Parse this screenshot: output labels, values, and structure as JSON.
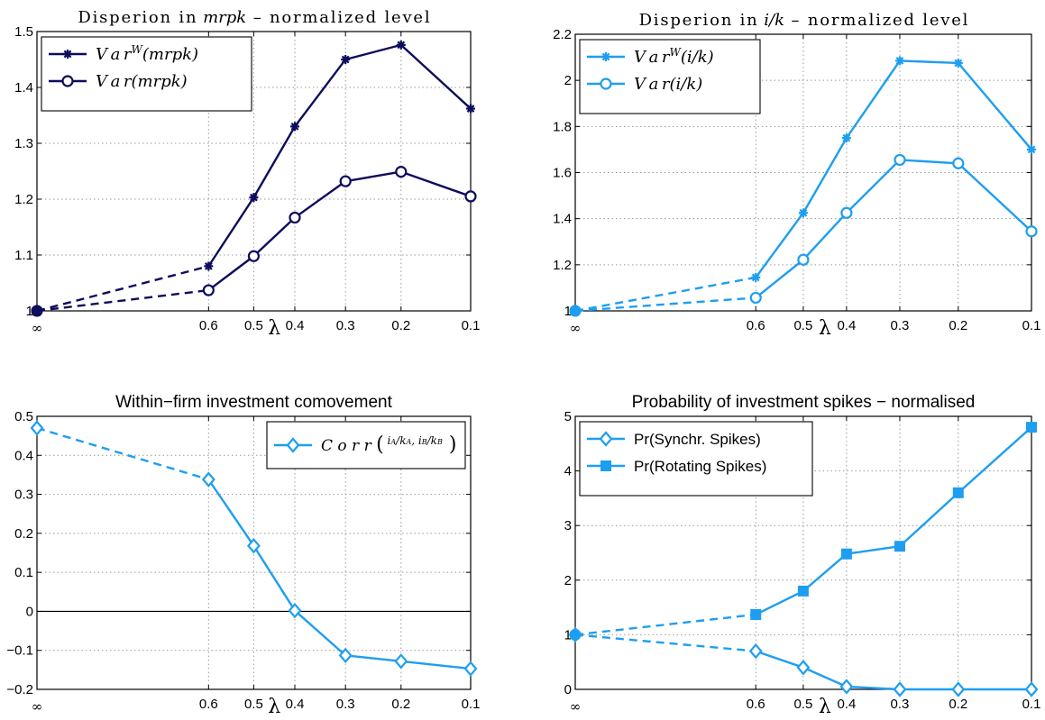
{
  "chart_data": [
    {
      "type": "line",
      "title_text": "Disperion in ",
      "title_math": "mrpk",
      "title_suffix": " – normalized level",
      "xlabel": "λ",
      "categories": [
        "∞",
        "0.6",
        "0.5",
        "0.4",
        "0.3",
        "0.2",
        "0.1"
      ],
      "x": [
        1.0,
        0.6,
        0.5,
        0.4,
        0.3,
        0.2,
        0.1
      ],
      "ylim": [
        1,
        1.5
      ],
      "yticks": [
        1,
        1.1,
        1.2,
        1.3,
        1.4,
        1.5
      ],
      "ytick_labels": [
        "1",
        "1.1",
        "1.2",
        "1.3",
        "1.4",
        "1.5"
      ],
      "grid": true,
      "legend_position": "top-left",
      "color": "#0d0d5c",
      "series": [
        {
          "name": "Var^W(mrpk)",
          "name_base": "Var",
          "name_sup": "W",
          "name_arg": "(mrpk)",
          "marker": "star",
          "values": [
            1.0,
            1.08,
            1.203,
            1.33,
            1.45,
            1.476,
            1.362
          ]
        },
        {
          "name": "Var(mrpk)",
          "name_base": "Var",
          "name_sup": "",
          "name_arg": "(mrpk)",
          "marker": "circle",
          "values": [
            1.0,
            1.037,
            1.098,
            1.167,
            1.232,
            1.249,
            1.205
          ]
        }
      ]
    },
    {
      "type": "line",
      "title_text": "Disperion in ",
      "title_math": "i/k",
      "title_suffix": " – normalized level",
      "xlabel": "λ",
      "categories": [
        "∞",
        "0.6",
        "0.5",
        "0.4",
        "0.3",
        "0.2",
        "0.1"
      ],
      "x": [
        1.0,
        0.6,
        0.5,
        0.4,
        0.3,
        0.2,
        0.1
      ],
      "ylim": [
        1,
        2.2
      ],
      "yticks": [
        1,
        1.2,
        1.4,
        1.6,
        1.8,
        2,
        2.2
      ],
      "ytick_labels": [
        "1",
        "1.2",
        "1.4",
        "1.6",
        "1.8",
        "2",
        "2.2"
      ],
      "grid": true,
      "legend_position": "top-left",
      "color": "#1e9ef0",
      "series": [
        {
          "name": "Var^W(i/k)",
          "name_base": "Var",
          "name_sup": "W",
          "name_arg": "(i/k)",
          "marker": "star",
          "values": [
            1.0,
            1.145,
            1.425,
            1.75,
            2.085,
            2.075,
            1.7
          ]
        },
        {
          "name": "Var(i/k)",
          "name_base": "Var",
          "name_sup": "",
          "name_arg": "(i/k)",
          "marker": "circle",
          "values": [
            1.0,
            1.057,
            1.222,
            1.425,
            1.655,
            1.64,
            1.345
          ]
        }
      ]
    },
    {
      "type": "line",
      "title": "Within−firm investment comovement",
      "xlabel": "λ",
      "categories": [
        "∞",
        "0.6",
        "0.5",
        "0.4",
        "0.3",
        "0.2",
        "0.1"
      ],
      "x": [
        1.0,
        0.6,
        0.5,
        0.4,
        0.3,
        0.2,
        0.1
      ],
      "ylim": [
        -0.2,
        0.5
      ],
      "yticks": [
        -0.2,
        -0.1,
        0,
        0.1,
        0.2,
        0.3,
        0.4,
        0.5
      ],
      "ytick_labels": [
        "−0.2",
        "−0.1",
        "0",
        "0.1",
        "0.2",
        "0.3",
        "0.4",
        "0.5"
      ],
      "grid": true,
      "zero_line": true,
      "legend_position": "top-right",
      "color": "#1e9ef0",
      "series": [
        {
          "name": "Corr(iA/kA, iB/kB)",
          "marker": "diamond",
          "values": [
            0.47,
            0.338,
            0.168,
            0.002,
            -0.113,
            -0.128,
            -0.147
          ]
        }
      ]
    },
    {
      "type": "line",
      "title": "Probability of investment spikes − normalised",
      "xlabel": "λ",
      "categories": [
        "∞",
        "0.6",
        "0.5",
        "0.4",
        "0.3",
        "0.2",
        "0.1"
      ],
      "x": [
        1.0,
        0.6,
        0.5,
        0.4,
        0.3,
        0.2,
        0.1
      ],
      "ylim": [
        0,
        5
      ],
      "yticks": [
        0,
        1,
        2,
        3,
        4,
        5
      ],
      "ytick_labels": [
        "0",
        "1",
        "2",
        "3",
        "4",
        "5"
      ],
      "grid": true,
      "legend_position": "top-left",
      "color": "#1e9ef0",
      "series": [
        {
          "name": "Pr(Synchr. Spikes)",
          "marker": "diamond",
          "values": [
            1.0,
            0.7,
            0.4,
            0.05,
            0.0,
            0.0,
            0.0
          ]
        },
        {
          "name": "Pr(Rotating Spikes)",
          "marker": "square",
          "values": [
            1.0,
            1.37,
            1.8,
            2.48,
            2.62,
            3.6,
            4.8
          ]
        }
      ]
    }
  ]
}
